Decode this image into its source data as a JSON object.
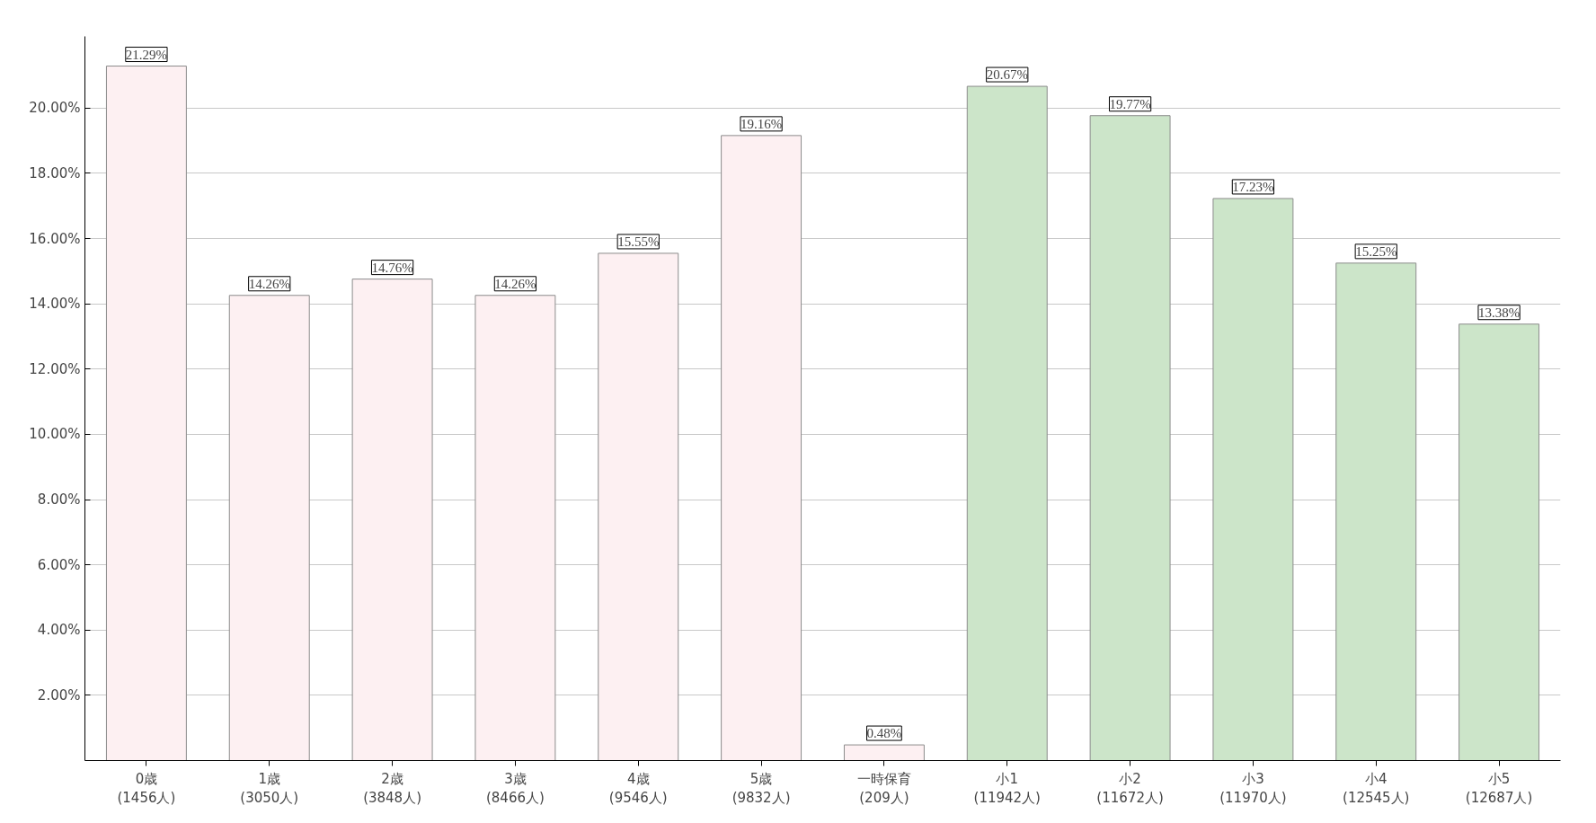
{
  "chart_data": {
    "type": "bar",
    "categories": [
      "0歳\n(1456人)",
      "1歳\n(3050人)",
      "2歳\n(3848人)",
      "3歳\n(8466人)",
      "4歳\n(9546人)",
      "5歳\n(9832人)",
      "一時保育\n(209人)",
      "小1\n(11942人)",
      "小2\n(11672人)",
      "小3\n(11970人)",
      "小4\n(12545人)",
      "小5\n(12687人)"
    ],
    "values": [
      21.29,
      14.26,
      14.76,
      14.26,
      15.55,
      19.16,
      0.48,
      20.67,
      19.77,
      17.23,
      15.25,
      13.38
    ],
    "value_labels": [
      "21.29%",
      "14.26%",
      "14.76%",
      "14.26%",
      "15.55%",
      "19.16%",
      "0.48%",
      "20.67%",
      "19.77%",
      "17.23%",
      "15.25%",
      "13.38%"
    ],
    "colors": [
      "#fdf0f2",
      "#fdf0f2",
      "#fdf0f2",
      "#fdf0f2",
      "#fdf0f2",
      "#fdf0f2",
      "#fdf0f2",
      "#cce5c9",
      "#cce5c9",
      "#cce5c9",
      "#cce5c9",
      "#cce5c9"
    ],
    "ylim": [
      0,
      22.2
    ],
    "yticks": [
      {
        "value": 2,
        "label": "2.00%"
      },
      {
        "value": 4,
        "label": "4.00%"
      },
      {
        "value": 6,
        "label": "6.00%"
      },
      {
        "value": 8,
        "label": "8.00%"
      },
      {
        "value": 10,
        "label": "10.00%"
      },
      {
        "value": 12,
        "label": "12.00%"
      },
      {
        "value": 14,
        "label": "14.00%"
      },
      {
        "value": 16,
        "label": "16.00%"
      },
      {
        "value": 18,
        "label": "18.00%"
      },
      {
        "value": 20,
        "label": "20.00%"
      }
    ],
    "grid": "y"
  }
}
